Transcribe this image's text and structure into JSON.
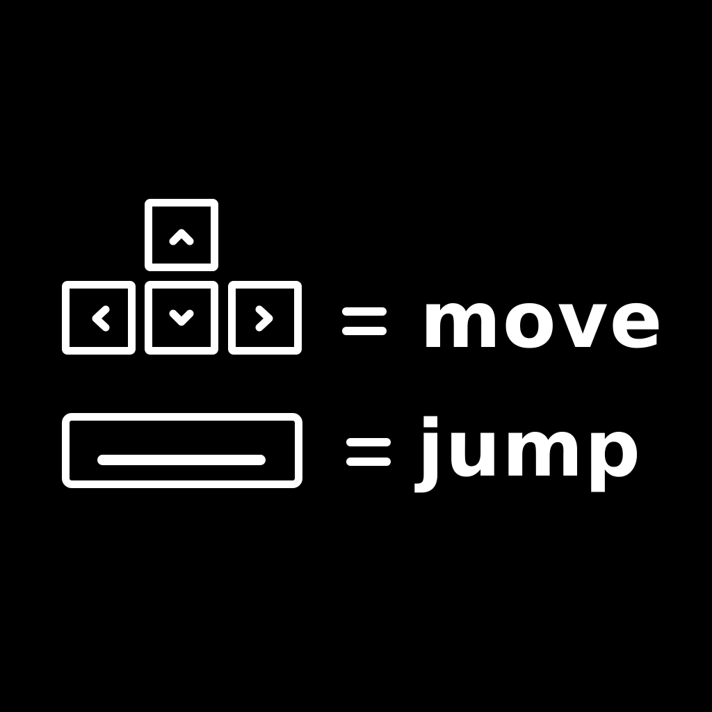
{
  "colors": {
    "background": "#000000",
    "foreground": "#ffffff"
  },
  "controls": {
    "move": {
      "keys": [
        "arrow-up",
        "arrow-left",
        "arrow-down",
        "arrow-right"
      ],
      "separator": "=",
      "label": "move"
    },
    "jump": {
      "keys": [
        "space-bar"
      ],
      "separator": "=",
      "label": "jump"
    }
  }
}
